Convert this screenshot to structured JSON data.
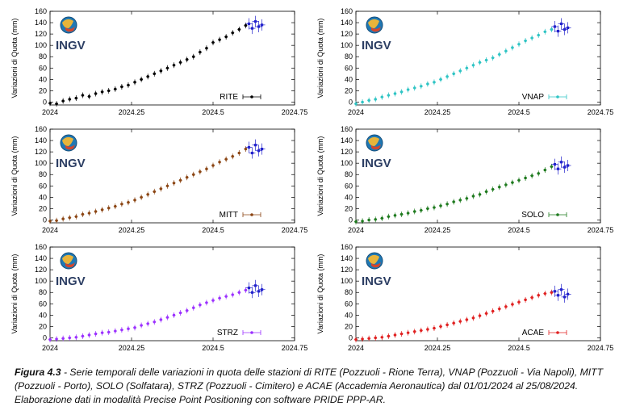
{
  "chart_data": [
    {
      "type": "scatter",
      "station": "RITE",
      "color": "#000000",
      "ylabel": "Variazioni di Quota (mm)",
      "xlim": [
        2024,
        2024.75
      ],
      "ylim": [
        -5,
        160
      ],
      "xticks": [
        "2024",
        "2024.25",
        "2024.5",
        "2024.75"
      ],
      "yticks": [
        "0",
        "20",
        "40",
        "60",
        "80",
        "100",
        "120",
        "140",
        "160"
      ],
      "legend": "RITE",
      "logo": "INGV",
      "x": [
        2024.0,
        2024.02,
        2024.04,
        2024.06,
        2024.08,
        2024.1,
        2024.12,
        2024.14,
        2024.16,
        2024.18,
        2024.2,
        2024.22,
        2024.24,
        2024.26,
        2024.28,
        2024.3,
        2024.32,
        2024.34,
        2024.36,
        2024.38,
        2024.4,
        2024.42,
        2024.44,
        2024.46,
        2024.48,
        2024.5,
        2024.52,
        2024.54,
        2024.56,
        2024.58,
        2024.6
      ],
      "y": [
        -2,
        -3,
        2,
        5,
        7,
        12,
        10,
        15,
        18,
        20,
        23,
        27,
        30,
        35,
        40,
        45,
        50,
        55,
        60,
        65,
        70,
        75,
        80,
        88,
        95,
        105,
        110,
        115,
        122,
        128,
        135
      ],
      "cluster_x": [
        2024.61,
        2024.62,
        2024.63,
        2024.64,
        2024.65
      ],
      "cluster_y": [
        138,
        130,
        142,
        133,
        136
      ]
    },
    {
      "type": "scatter",
      "station": "VNAP",
      "color": "#2ec4c4",
      "ylabel": "Variazioni di Quota (mm)",
      "xlim": [
        2024,
        2024.75
      ],
      "ylim": [
        -5,
        160
      ],
      "xticks": [
        "2024",
        "2024.25",
        "2024.5",
        "2024.75"
      ],
      "yticks": [
        "0",
        "20",
        "40",
        "60",
        "80",
        "100",
        "120",
        "140",
        "160"
      ],
      "legend": "VNAP",
      "logo": "INGV",
      "x": [
        2024.0,
        2024.02,
        2024.04,
        2024.06,
        2024.08,
        2024.1,
        2024.12,
        2024.14,
        2024.16,
        2024.18,
        2024.2,
        2024.22,
        2024.24,
        2024.26,
        2024.28,
        2024.3,
        2024.32,
        2024.34,
        2024.36,
        2024.38,
        2024.4,
        2024.42,
        2024.44,
        2024.46,
        2024.48,
        2024.5,
        2024.52,
        2024.54,
        2024.56,
        2024.58,
        2024.6
      ],
      "y": [
        -3,
        0,
        3,
        5,
        9,
        12,
        15,
        18,
        22,
        25,
        28,
        32,
        35,
        40,
        45,
        50,
        55,
        60,
        65,
        70,
        74,
        78,
        84,
        90,
        96,
        102,
        108,
        113,
        118,
        124,
        128
      ],
      "cluster_x": [
        2024.61,
        2024.62,
        2024.63,
        2024.64,
        2024.65
      ],
      "cluster_y": [
        133,
        125,
        138,
        128,
        131
      ]
    },
    {
      "type": "scatter",
      "station": "MITT",
      "color": "#8b4513",
      "ylabel": "Variazioni di Quota (mm)",
      "xlim": [
        2024,
        2024.75
      ],
      "ylim": [
        -5,
        160
      ],
      "xticks": [
        "2024",
        "2024.25",
        "2024.5",
        "2024.75"
      ],
      "yticks": [
        "0",
        "20",
        "40",
        "60",
        "80",
        "100",
        "120",
        "140",
        "160"
      ],
      "legend": "MITT",
      "logo": "INGV",
      "x": [
        2024.0,
        2024.02,
        2024.04,
        2024.06,
        2024.08,
        2024.1,
        2024.12,
        2024.14,
        2024.16,
        2024.18,
        2024.2,
        2024.22,
        2024.24,
        2024.26,
        2024.28,
        2024.3,
        2024.32,
        2024.34,
        2024.36,
        2024.38,
        2024.4,
        2024.42,
        2024.44,
        2024.46,
        2024.48,
        2024.5,
        2024.52,
        2024.54,
        2024.56,
        2024.58,
        2024.6
      ],
      "y": [
        -2,
        -1,
        2,
        4,
        6,
        10,
        12,
        15,
        18,
        21,
        24,
        28,
        31,
        35,
        40,
        45,
        50,
        55,
        60,
        65,
        70,
        75,
        80,
        85,
        90,
        96,
        102,
        107,
        112,
        118,
        125
      ],
      "cluster_x": [
        2024.61,
        2024.62,
        2024.63,
        2024.64,
        2024.65
      ],
      "cluster_y": [
        128,
        118,
        132,
        122,
        125
      ]
    },
    {
      "type": "scatter",
      "station": "SOLO",
      "color": "#1e7a1e",
      "ylabel": "Variazioni di Quota (mm)",
      "xlim": [
        2024,
        2024.75
      ],
      "ylim": [
        -5,
        160
      ],
      "xticks": [
        "2024",
        "2024.25",
        "2024.5",
        "2024.75"
      ],
      "yticks": [
        "0",
        "20",
        "40",
        "60",
        "80",
        "100",
        "120",
        "140",
        "160"
      ],
      "legend": "SOLO",
      "logo": "INGV",
      "x": [
        2024.0,
        2024.02,
        2024.04,
        2024.06,
        2024.08,
        2024.1,
        2024.12,
        2024.14,
        2024.16,
        2024.18,
        2024.2,
        2024.22,
        2024.24,
        2024.26,
        2024.28,
        2024.3,
        2024.32,
        2024.34,
        2024.36,
        2024.38,
        2024.4,
        2024.42,
        2024.44,
        2024.46,
        2024.48,
        2024.5,
        2024.52,
        2024.54,
        2024.56,
        2024.58,
        2024.6
      ],
      "y": [
        -3,
        -2,
        0,
        1,
        3,
        6,
        8,
        10,
        12,
        15,
        17,
        20,
        22,
        25,
        28,
        32,
        35,
        38,
        42,
        45,
        50,
        54,
        58,
        62,
        66,
        70,
        74,
        78,
        82,
        88,
        94
      ],
      "cluster_x": [
        2024.61,
        2024.62,
        2024.63,
        2024.64,
        2024.65
      ],
      "cluster_y": [
        98,
        90,
        102,
        93,
        96
      ]
    },
    {
      "type": "scatter",
      "station": "STRZ",
      "color": "#9b30ff",
      "ylabel": "Variazioni di Quota (mm)",
      "xlim": [
        2024,
        2024.75
      ],
      "ylim": [
        -5,
        160
      ],
      "xticks": [
        "2024",
        "2024.25",
        "2024.5",
        "2024.75"
      ],
      "yticks": [
        "0",
        "20",
        "40",
        "60",
        "80",
        "100",
        "120",
        "140",
        "160"
      ],
      "legend": "STRZ",
      "logo": "INGV",
      "x": [
        2024.0,
        2024.02,
        2024.04,
        2024.06,
        2024.08,
        2024.1,
        2024.12,
        2024.14,
        2024.16,
        2024.18,
        2024.2,
        2024.22,
        2024.24,
        2024.26,
        2024.28,
        2024.3,
        2024.32,
        2024.34,
        2024.36,
        2024.38,
        2024.4,
        2024.42,
        2024.44,
        2024.46,
        2024.48,
        2024.5,
        2024.52,
        2024.54,
        2024.56,
        2024.58,
        2024.6
      ],
      "y": [
        -3,
        -2,
        -1,
        0,
        1,
        3,
        5,
        7,
        9,
        10,
        12,
        14,
        16,
        18,
        22,
        25,
        28,
        32,
        36,
        40,
        44,
        48,
        53,
        58,
        62,
        66,
        70,
        73,
        76,
        80,
        84
      ],
      "cluster_x": [
        2024.61,
        2024.62,
        2024.63,
        2024.64,
        2024.65
      ],
      "cluster_y": [
        88,
        80,
        92,
        82,
        85
      ]
    },
    {
      "type": "scatter",
      "station": "ACAE",
      "color": "#e02020",
      "ylabel": "Variazioni di Quota (mm)",
      "xlim": [
        2024,
        2024.75
      ],
      "ylim": [
        -5,
        160
      ],
      "xticks": [
        "2024",
        "2024.25",
        "2024.5",
        "2024.75"
      ],
      "yticks": [
        "0",
        "20",
        "40",
        "60",
        "80",
        "100",
        "120",
        "140",
        "160"
      ],
      "legend": "ACAE",
      "logo": "INGV",
      "x": [
        2024.0,
        2024.02,
        2024.04,
        2024.06,
        2024.08,
        2024.1,
        2024.12,
        2024.14,
        2024.16,
        2024.18,
        2024.2,
        2024.22,
        2024.24,
        2024.26,
        2024.28,
        2024.3,
        2024.32,
        2024.34,
        2024.36,
        2024.38,
        2024.4,
        2024.42,
        2024.44,
        2024.46,
        2024.48,
        2024.5,
        2024.52,
        2024.54,
        2024.56,
        2024.58,
        2024.6
      ],
      "y": [
        -3,
        -2,
        -1,
        0,
        1,
        3,
        5,
        7,
        9,
        11,
        13,
        15,
        17,
        20,
        23,
        26,
        29,
        32,
        35,
        39,
        43,
        47,
        51,
        55,
        59,
        63,
        67,
        71,
        75,
        78,
        80
      ],
      "cluster_x": [
        2024.61,
        2024.62,
        2024.63,
        2024.64,
        2024.65
      ],
      "cluster_y": [
        82,
        75,
        85,
        72,
        77
      ]
    }
  ],
  "caption": {
    "label": "Figura 4.3",
    "text": " - Serie temporali delle variazioni in quota delle stazioni di RITE (Pozzuoli - Rione Terra), VNAP (Pozzuoli - Via Napoli), MITT (Pozzuoli - Porto), SOLO (Solfatara), STRZ (Pozzuoli - Cimitero) e ACAE (Accademia Aeronautica) dal 01/01/2024 al 25/08/2024. Elaborazione dati in modalità Precise Point Positioning con software PRIDE PPP-AR."
  },
  "colors": {
    "cluster": "#2222cc",
    "logo_text": "#2c3e63"
  }
}
